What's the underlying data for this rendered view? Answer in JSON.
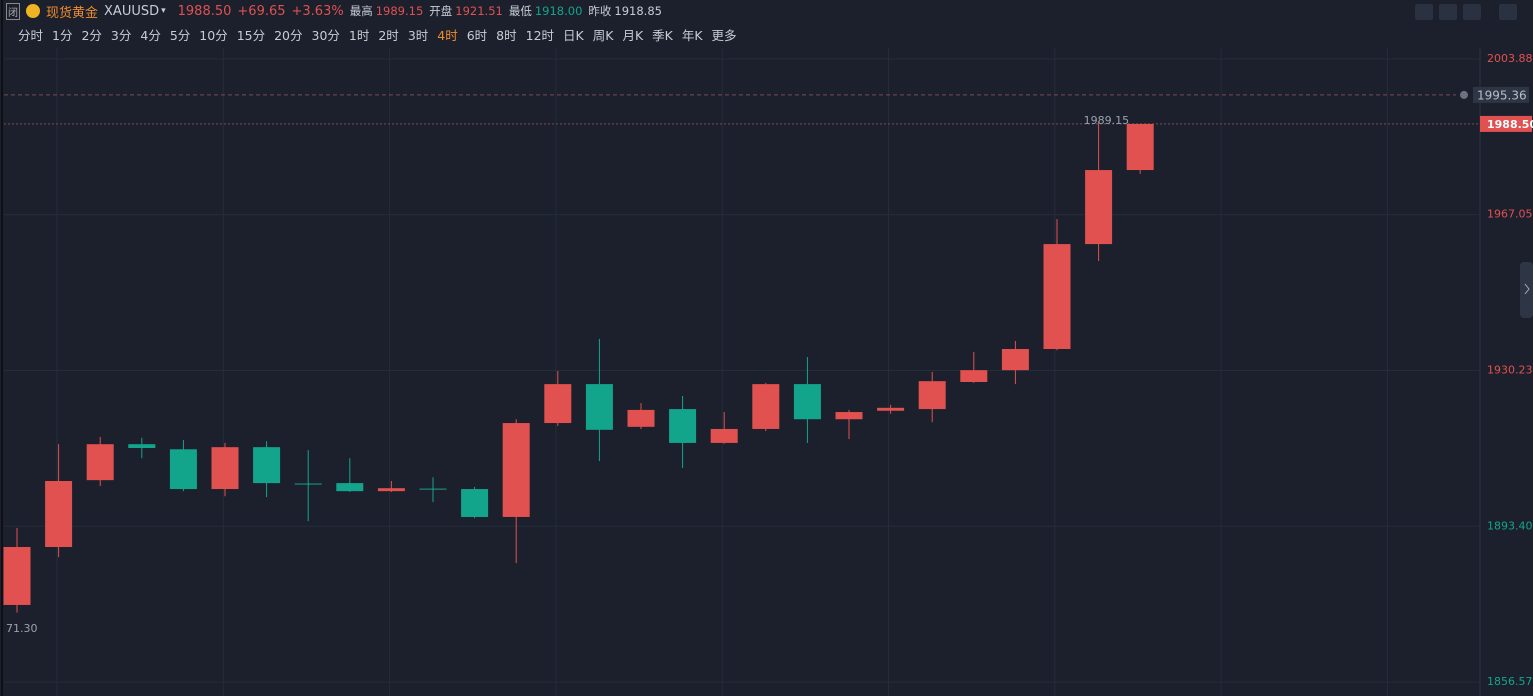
{
  "header": {
    "badge": "闭",
    "name": "现货黄金",
    "symbol": "XAUUSD",
    "price": "1988.50",
    "change": "+69.65",
    "change_pct": "+3.63%",
    "high_label": "最高",
    "high": 1989.15,
    "open_label": "开盘",
    "open": 1921.51,
    "low_label": "最低",
    "low": "1918.00",
    "prev_close_label": "昨收",
    "timeframes": [
      "分时",
      "1分",
      "2分",
      "3分",
      "4分",
      "5分",
      "10分",
      "15分",
      "20分",
      "30分",
      "1时",
      "2时",
      "3时",
      "4时",
      "6时",
      "8时",
      "12时",
      "日K",
      "周K",
      "月K",
      "季K",
      "年K",
      "更多"
    ],
    "active_timeframe": 13
  },
  "chart_data": {
    "type": "candlestick",
    "up_color": "#e0514f",
    "down_color": "#13a58b",
    "prev_close": 1918.85,
    "open": [
      1874.8,
      1888.5,
      1904.3,
      1912.8,
      1911.6,
      1902.2,
      1912.1,
      1903.5,
      1903.6,
      1901.7,
      1902.3,
      1902.2,
      1895.6,
      1917.8,
      1927.0,
      1916.9,
      1921.1,
      1913.1,
      1916.4,
      1927.0,
      1918.7,
      1920.7,
      1921.1,
      1927.5,
      1930.3,
      1935.3,
      1960.1,
      1977.6
    ],
    "high": [
      1893.0,
      1912.8,
      1914.5,
      1914.3,
      1913.8,
      1913.1,
      1913.5,
      1911.4,
      1909.5,
      1904.1,
      1905.0,
      1902.7,
      1918.7,
      1930.1,
      1937.7,
      1922.5,
      1924.2,
      1920.4,
      1927.3,
      1933.4,
      1920.9,
      1922.1,
      1929.9,
      1934.6,
      1937.2,
      1966.0,
      1989.15,
      1988.5
    ],
    "low": [
      1873.0,
      1886.1,
      1902.9,
      1909.5,
      1901.7,
      1900.5,
      1900.3,
      1894.6,
      1901.5,
      1901.5,
      1899.1,
      1895.3,
      1884.7,
      1917.1,
      1908.8,
      1916.4,
      1907.2,
      1912.9,
      1915.9,
      1913.1,
      1914.0,
      1920.0,
      1918.0,
      1927.3,
      1927.0,
      1935.0,
      1956.1,
      1976.7
    ],
    "close": [
      1888.5,
      1904.1,
      1912.8,
      1911.9,
      1902.2,
      1912.1,
      1903.6,
      1903.4,
      1901.7,
      1902.4,
      1902.2,
      1895.6,
      1917.8,
      1927.0,
      1916.2,
      1920.9,
      1913.1,
      1916.4,
      1927.0,
      1918.7,
      1920.4,
      1921.4,
      1927.7,
      1930.3,
      1935.3,
      1960.1,
      1977.6,
      1988.5
    ],
    "ylim": [
      1854.7,
      2005.5
    ],
    "yticks": [
      2003.88,
      1967.05,
      1930.23,
      {
        "value": 1893.4,
        "label": "1893.40"
      },
      1856.57
    ],
    "grid": true,
    "alert_line": 1995.36,
    "last_price": {
      "value": 1988.5,
      "label": "1988.50"
    },
    "high_marker": {
      "index": 26,
      "value": 1989.15
    },
    "low_marker_text": "71.30"
  }
}
